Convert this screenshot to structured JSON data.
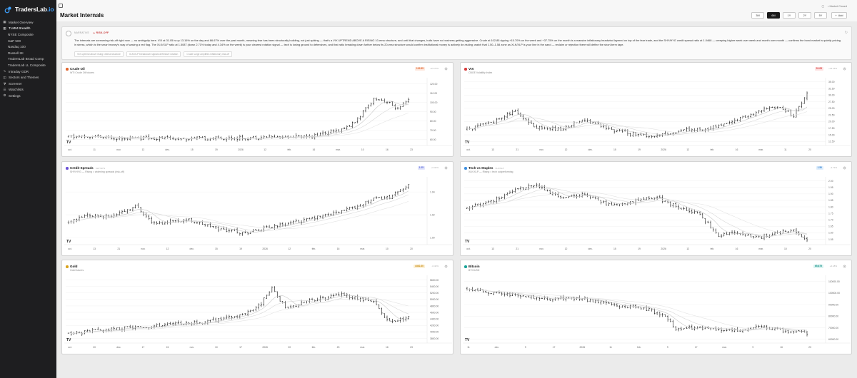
{
  "app": {
    "brand": "TradersLab",
    "brand_suffix": ".io",
    "page_title": "Market Internals",
    "user_label": "• Market Closed"
  },
  "sidebar": {
    "items": [
      {
        "label": "Market Overview",
        "icon": "grid-icon",
        "sub": false
      },
      {
        "label": "TLMM Breadth",
        "icon": "bar-chart-icon",
        "sub": false,
        "active": true
      },
      {
        "label": "NYSE Composite",
        "icon": "",
        "sub": true
      },
      {
        "label": "S&P 500",
        "icon": "",
        "sub": true
      },
      {
        "label": "Nasdaq 100",
        "icon": "",
        "sub": true
      },
      {
        "label": "Russell 2K",
        "icon": "",
        "sub": true
      },
      {
        "label": "TradersLab Broad Comp",
        "icon": "",
        "sub": true
      },
      {
        "label": "TradersLab LL Composite",
        "icon": "",
        "sub": true
      },
      {
        "label": "Intraday GDR",
        "icon": "pulse-icon",
        "sub": false
      },
      {
        "label": "Sectors and Themes",
        "icon": "layers-icon",
        "sub": false
      },
      {
        "label": "Screener",
        "icon": "filter-icon",
        "sub": false
      },
      {
        "label": "Watchlists",
        "icon": "list-icon",
        "sub": false
      },
      {
        "label": "Settings",
        "icon": "gear-icon",
        "sub": false
      }
    ]
  },
  "toolbar": {
    "ranges": [
      "3M",
      "6M",
      "1Y",
      "2Y",
      "5Y"
    ],
    "active_range": "6M",
    "add_label": "Add"
  },
  "narrative": {
    "header": "NARRATIVE",
    "regime": "▲ RISK-OFF",
    "text": "The internals are screaming risk-off right now — no ambiguity here. VIX at 31.05 is up 13.16% on the day and 86.67% over the past month, meaning fear has been structurally building, not just spiking — that's a VIX UPTREND ABOVE A RISING 10-ema structure, and until that changes, bulls have no business getting aggressive. Crude at 102.85 ripping +15.70% on the week and +37.75% on the month is a massive inflationary headwind layered on top of the fear trade, and the SHY/HYG credit spread ratio at 1.0468 — creeping higher week over week and month over month — confirms the bond market is quietly pricing in stress, which is the smart money's way of waving a red flag. The XLK/XLP ratio at 1.5087 (down 2.71% today and 4.34% on the week) is your clearest rotation signal — tech is losing ground to defensives, and that ratio breaking down further below its 20-ema structure would confirm institutional money is actively de-risking; watch that 1.50–1.58 zone as XLK/XLP is your line in the sand — reclaim or rejection there will define the short-term tape.",
    "chips": [
      "VIX uptrend above rising 10ema structure",
      "XLK/XLP breakdown signals defensive rotation",
      "Crude surge amplifies inflationary risk-off"
    ]
  },
  "panels": [
    {
      "title": "Crude Oil",
      "ticker": "",
      "subtitle": "WTI Crude Oil futures",
      "badge": "102.85",
      "change": "+15.70%",
      "dot_color": "#e0632a",
      "badge_color": "#e0632a",
      "badge_bg": "#fde8de",
      "chart_data": {
        "type": "ohlc",
        "seed": 11,
        "y_ticks": [
          "120.00",
          "110.00",
          "100.00",
          "90.00",
          "80.00",
          "70.00",
          "60.00"
        ],
        "y_range": [
          55,
          125
        ],
        "x_labels": [
          "oct.",
          "11",
          "nov.",
          "12",
          "dec.",
          "15",
          "19",
          "2026",
          "12",
          "feb.",
          "16",
          "mar.",
          "10",
          "16",
          "23"
        ],
        "path": [
          [
            0,
            63
          ],
          [
            0.12,
            62
          ],
          [
            0.25,
            61.5
          ],
          [
            0.4,
            61
          ],
          [
            0.55,
            62
          ],
          [
            0.72,
            64
          ],
          [
            0.8,
            70
          ],
          [
            0.84,
            78
          ],
          [
            0.88,
            95
          ],
          [
            0.9,
            105
          ],
          [
            0.94,
            100
          ],
          [
            0.97,
            92
          ],
          [
            1,
            102
          ]
        ]
      }
    },
    {
      "title": "VIX",
      "ticker": "",
      "subtitle": "CBOE Volatility Index",
      "badge": "31.05",
      "change": "+13.16%",
      "dot_color": "#d73b3b",
      "badge_color": "#d73b3b",
      "badge_bg": "#fde2e2",
      "chart_data": {
        "type": "ohlc",
        "seed": 23,
        "y_ticks": [
          "35.00",
          "32.50",
          "30.00",
          "27.50",
          "25.00",
          "22.50",
          "20.00",
          "17.50",
          "15.00",
          "12.50"
        ],
        "y_range": [
          11.5,
          36
        ],
        "x_labels": [
          "oct.",
          "13",
          "21",
          "nov.",
          "12",
          "dec.",
          "15",
          "19",
          "2026",
          "12",
          "feb.",
          "16",
          "mar.",
          "11",
          "20"
        ],
        "path": [
          [
            0,
            17
          ],
          [
            0.08,
            20
          ],
          [
            0.14,
            24
          ],
          [
            0.2,
            18
          ],
          [
            0.28,
            17
          ],
          [
            0.34,
            21
          ],
          [
            0.42,
            17
          ],
          [
            0.5,
            15
          ],
          [
            0.56,
            14.5
          ],
          [
            0.64,
            17
          ],
          [
            0.7,
            17
          ],
          [
            0.78,
            20
          ],
          [
            0.86,
            24
          ],
          [
            0.92,
            26
          ],
          [
            0.96,
            22
          ],
          [
            1,
            31
          ]
        ]
      }
    },
    {
      "title": "Credit Spreads",
      "ticker": "SHY/HYG",
      "subtitle": "SHY/HYG — Rising = widening spreads (risk-off)",
      "badge": "1.05",
      "change": "+0.34%",
      "dot_color": "#6a4fd6",
      "badge_color": "#4f5fd6",
      "badge_bg": "#e3e6fb",
      "chart_data": {
        "type": "ohlc",
        "seed": 37,
        "y_ticks": [
          "1.04",
          "1.02",
          "1.00"
        ],
        "y_range": [
          0.995,
          1.052
        ],
        "x_labels": [
          "oct.",
          "13",
          "21",
          "nov.",
          "12",
          "dec.",
          "15",
          "19",
          "2026",
          "12",
          "feb.",
          "16",
          "mar.",
          "10",
          "20"
        ],
        "path": [
          [
            0,
            1.013
          ],
          [
            0.06,
            1.02
          ],
          [
            0.12,
            1.018
          ],
          [
            0.2,
            1.028
          ],
          [
            0.25,
            1.012
          ],
          [
            0.35,
            1.016
          ],
          [
            0.44,
            1.008
          ],
          [
            0.52,
            1.004
          ],
          [
            0.6,
            1.01
          ],
          [
            0.68,
            1.014
          ],
          [
            0.76,
            1.02
          ],
          [
            0.84,
            1.026
          ],
          [
            0.9,
            1.034
          ],
          [
            0.95,
            1.036
          ],
          [
            1,
            1.047
          ]
        ]
      }
    },
    {
      "title": "Tech vs Staples",
      "ticker": "XLK/XLP",
      "subtitle": "XLK/XLP — Rising = tech outperforming",
      "badge": "1.50",
      "change": "-2.71%",
      "dot_color": "#3d8fe0",
      "badge_color": "#2f7fd0",
      "badge_bg": "#dfeefc",
      "chart_data": {
        "type": "ohlc",
        "seed": 51,
        "y_ticks": [
          "2.00",
          "1.95",
          "1.90",
          "1.85",
          "1.80",
          "1.75",
          "1.70",
          "1.65",
          "1.60",
          "1.55"
        ],
        "y_range": [
          1.52,
          2.02
        ],
        "x_labels": [
          "oct.",
          "13",
          "21",
          "nov.",
          "12",
          "dec.",
          "15",
          "19",
          "2026",
          "12",
          "feb.",
          "16",
          "mar.",
          "10",
          "20"
        ],
        "path": [
          [
            0,
            1.79
          ],
          [
            0.08,
            1.85
          ],
          [
            0.14,
            1.93
          ],
          [
            0.2,
            1.97
          ],
          [
            0.28,
            1.86
          ],
          [
            0.34,
            1.9
          ],
          [
            0.42,
            1.81
          ],
          [
            0.48,
            1.84
          ],
          [
            0.56,
            1.87
          ],
          [
            0.62,
            1.8
          ],
          [
            0.68,
            1.75
          ],
          [
            0.74,
            1.58
          ],
          [
            0.8,
            1.6
          ],
          [
            0.86,
            1.56
          ],
          [
            0.9,
            1.6
          ],
          [
            0.96,
            1.62
          ],
          [
            1,
            1.55
          ]
        ]
      }
    },
    {
      "title": "Gold",
      "ticker": "",
      "subtitle": "Gold futures",
      "badge": "4462.30",
      "change": "-0.42%",
      "dot_color": "#d9a21b",
      "badge_color": "#c78b10",
      "badge_bg": "#fcf0d6",
      "chart_data": {
        "type": "ohlc",
        "seed": 67,
        "y_ticks": [
          "5600.00",
          "5400.00",
          "5200.00",
          "5000.00",
          "4800.00",
          "4600.00",
          "4400.00",
          "4200.00",
          "4000.00",
          "3800.00"
        ],
        "y_range": [
          3700,
          5700
        ],
        "x_labels": [
          "oct.",
          "20",
          "dec.",
          "17",
          "24",
          "nov.",
          "10",
          "17",
          "2026",
          "20",
          "feb.",
          "23",
          "mar.",
          "16",
          "23"
        ],
        "path": [
          [
            0,
            3950
          ],
          [
            0.1,
            4050
          ],
          [
            0.2,
            4150
          ],
          [
            0.3,
            4230
          ],
          [
            0.4,
            4300
          ],
          [
            0.5,
            4500
          ],
          [
            0.56,
            4800
          ],
          [
            0.6,
            5350
          ],
          [
            0.64,
            4700
          ],
          [
            0.7,
            4950
          ],
          [
            0.76,
            5050
          ],
          [
            0.8,
            5150
          ],
          [
            0.86,
            5000
          ],
          [
            0.9,
            4900
          ],
          [
            0.94,
            4300
          ],
          [
            1,
            4460
          ]
        ]
      }
    },
    {
      "title": "Bitcoin",
      "ticker": "",
      "subtitle": "BTC/USD",
      "badge": "65,675",
      "change": "+0.18%",
      "dot_color": "#17a398",
      "badge_color": "#138f86",
      "badge_bg": "#d9f3f0",
      "chart_data": {
        "type": "ohlc",
        "seed": 83,
        "y_ticks": [
          "110000.00",
          "100000.00",
          "90000.00",
          "80000.00",
          "70000.00",
          "60000.00"
        ],
        "y_range": [
          58000,
          114000
        ],
        "x_labels": [
          "11",
          "dec.",
          "9",
          "17",
          "2026",
          "11",
          "feb.",
          "9",
          "17",
          "mar.",
          "9",
          "16",
          "23"
        ],
        "path": [
          [
            0,
            104000
          ],
          [
            0.08,
            100000
          ],
          [
            0.16,
            97000
          ],
          [
            0.24,
            95000
          ],
          [
            0.32,
            95500
          ],
          [
            0.4,
            92000
          ],
          [
            0.46,
            88000
          ],
          [
            0.52,
            87000
          ],
          [
            0.58,
            80000
          ],
          [
            0.62,
            68000
          ],
          [
            0.66,
            70000
          ],
          [
            0.72,
            68500
          ],
          [
            0.8,
            67000
          ],
          [
            0.86,
            71000
          ],
          [
            0.9,
            69000
          ],
          [
            0.96,
            66000
          ],
          [
            1,
            65700
          ]
        ]
      }
    }
  ]
}
